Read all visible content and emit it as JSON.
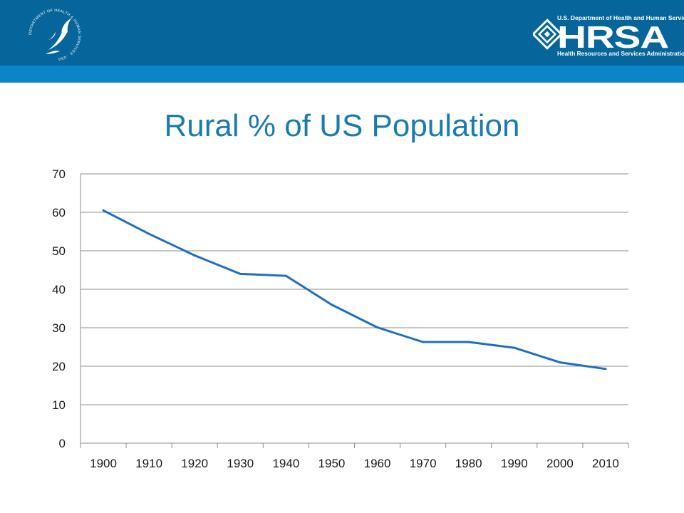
{
  "header": {
    "seal_icon": "hhs-eagle-seal-icon",
    "seal_text": "DEPARTMENT OF HEALTH & HUMAN SERVICES · USA",
    "logo_icon": "hrsa-logo-icon",
    "logo_text": "HRSA",
    "logo_department": "U.S. Department of Health and Human Services",
    "logo_subtitle": "Health Resources and Services Administration",
    "colors": {
      "bar": "#06659a",
      "stripe": "#0a86c8"
    }
  },
  "chart_data": {
    "type": "line",
    "title": "Rural % of US Population",
    "xlabel": "",
    "ylabel": "",
    "categories": [
      "1900",
      "1910",
      "1920",
      "1930",
      "1940",
      "1950",
      "1960",
      "1970",
      "1980",
      "1990",
      "2000",
      "2010"
    ],
    "series": [
      {
        "values": [
          60.5,
          54.4,
          48.8,
          44.0,
          43.5,
          36.0,
          30.1,
          26.3,
          26.3,
          24.8,
          21.0,
          19.3
        ],
        "color": "#1f6fbf"
      }
    ],
    "ylim": [
      0,
      70
    ],
    "yticks": [
      0,
      10,
      20,
      30,
      40,
      50,
      60,
      70
    ],
    "grid": true,
    "legend": "none"
  }
}
